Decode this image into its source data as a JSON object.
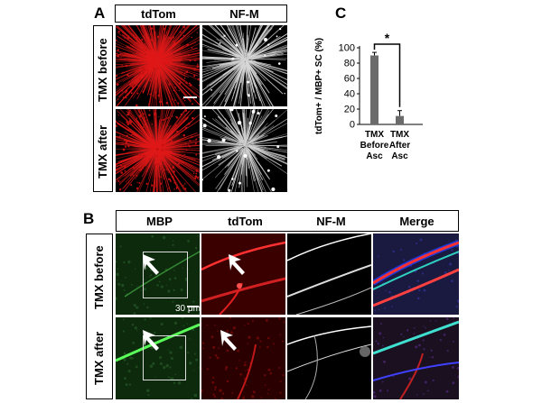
{
  "panelA": {
    "letter": "A",
    "columns": [
      "tdTom",
      "NF-M"
    ],
    "rows": [
      "TMX before",
      "TMX after"
    ]
  },
  "panelB": {
    "letter": "B",
    "columns": [
      "MBP",
      "tdTom",
      "NF-M",
      "Merge"
    ],
    "rows": [
      "TMX before",
      "TMX after"
    ],
    "scalebar_label": "30 μm"
  },
  "panelC": {
    "letter": "C",
    "significance": "*"
  },
  "chart_data": {
    "type": "bar",
    "categories": [
      "TMX Before Asc",
      "TMX After Asc"
    ],
    "values": [
      90,
      11
    ],
    "errors": [
      4,
      7
    ],
    "ylabel": "tdTom+ / MBP+ SC (%)",
    "ylim": [
      0,
      100
    ],
    "yticks": [
      0,
      20,
      40,
      60,
      80,
      100
    ],
    "bar_color": "#6b6b6b",
    "grid": false
  }
}
